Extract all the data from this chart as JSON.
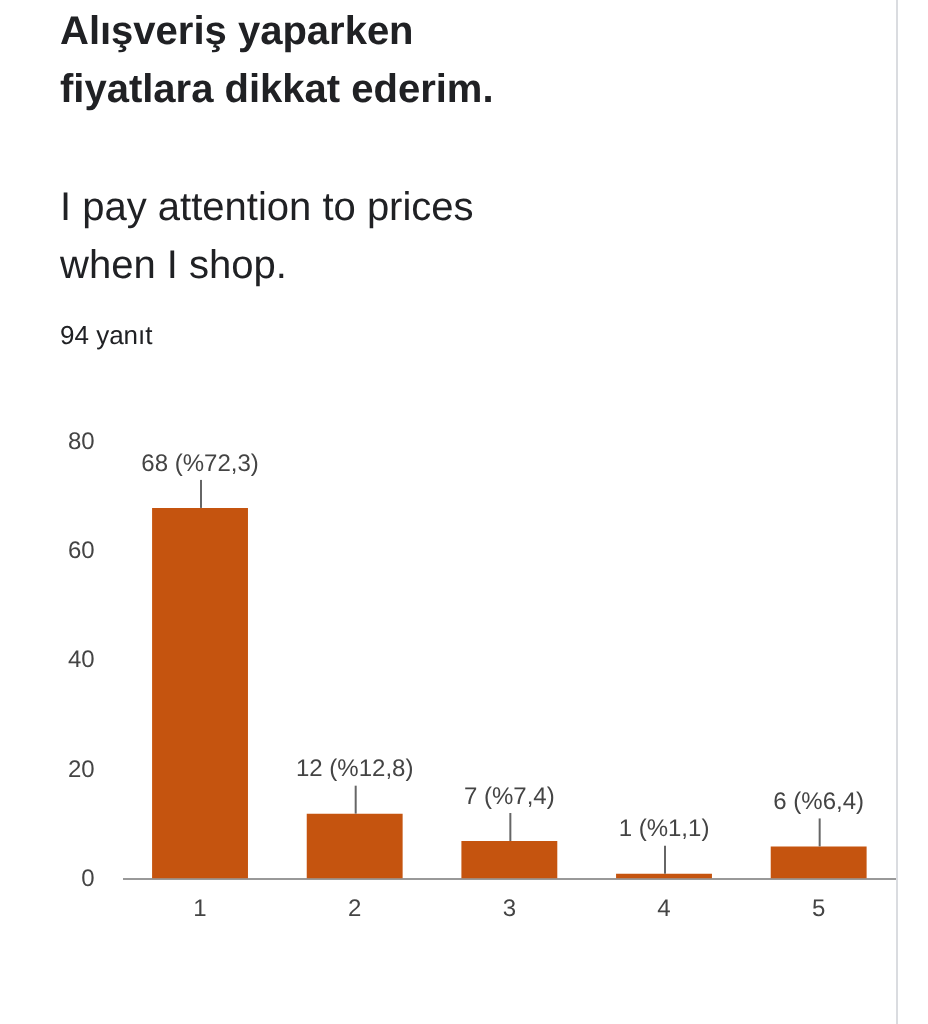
{
  "chart_data": {
    "type": "bar",
    "title": "Alışveriş yaparken fiyatlara dikkat ederim.",
    "subtitle": "I pay attention to prices when I shop.",
    "annotations": [
      "94 yanıt"
    ],
    "categories": [
      "1",
      "2",
      "3",
      "4",
      "5"
    ],
    "values": [
      68,
      12,
      7,
      1,
      6
    ],
    "value_labels": [
      "68 (%72,3)",
      "12 (%12,8)",
      "7 (%7,4)",
      "1 (%1,1)",
      "6 (%6,4)"
    ],
    "color": "#c5540f",
    "ylim": [
      0,
      80
    ],
    "yticks": [
      0,
      20,
      40,
      60,
      80
    ],
    "grid": false,
    "legend": false
  }
}
